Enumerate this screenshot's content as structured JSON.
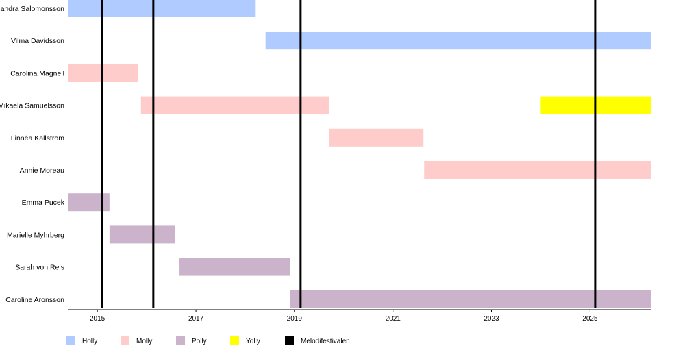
{
  "chart_data": {
    "type": "timeline",
    "x_axis": {
      "min": "2014-06-01",
      "max": "2026-04-01",
      "ticks": [
        "2015",
        "2017",
        "2019",
        "2021",
        "2023",
        "2025"
      ]
    },
    "groups": [
      {
        "name": "Holly",
        "color": "#b0cbff"
      },
      {
        "name": "Molly",
        "color": "#ffcccc"
      },
      {
        "name": "Polly",
        "color": "#ccb3cc"
      },
      {
        "name": "Yolly",
        "color": "#ffff00"
      }
    ],
    "members": [
      {
        "name": "Sandra Salomonsson",
        "periods": [
          {
            "group": "Holly",
            "start": "2014-06-01",
            "end": "2018-03-15"
          }
        ]
      },
      {
        "name": "Vilma Davidsson",
        "periods": [
          {
            "group": "Holly",
            "start": "2018-06-01",
            "end": "2026-04-01"
          }
        ]
      },
      {
        "name": "Carolina Magnell",
        "periods": [
          {
            "group": "Molly",
            "start": "2014-06-01",
            "end": "2015-11-01"
          }
        ]
      },
      {
        "name": "Mikaela Samuelsson",
        "periods": [
          {
            "group": "Molly",
            "start": "2015-11-20",
            "end": "2019-09-15"
          },
          {
            "group": "Yolly",
            "start": "2024-01-01",
            "end": "2026-04-01"
          }
        ]
      },
      {
        "name": "Linnéa Källström",
        "periods": [
          {
            "group": "Molly",
            "start": "2019-09-15",
            "end": "2021-08-15"
          }
        ]
      },
      {
        "name": "Annie Moreau",
        "periods": [
          {
            "group": "Molly",
            "start": "2021-08-20",
            "end": "2026-04-01"
          }
        ]
      },
      {
        "name": "Emma Pucek",
        "periods": [
          {
            "group": "Polly",
            "start": "2014-06-01",
            "end": "2015-04-01"
          }
        ]
      },
      {
        "name": "Marielle Myhrberg",
        "periods": [
          {
            "group": "Polly",
            "start": "2015-04-01",
            "end": "2016-08-01"
          }
        ]
      },
      {
        "name": "Sarah von Reis",
        "periods": [
          {
            "group": "Polly",
            "start": "2016-09-01",
            "end": "2018-12-01"
          }
        ]
      },
      {
        "name": "Caroline Aronsson",
        "periods": [
          {
            "group": "Polly",
            "start": "2018-12-01",
            "end": "2026-04-01"
          }
        ]
      }
    ],
    "events": {
      "name": "Melodifestivalen",
      "color": "#000000",
      "dates": [
        "2015-02-07",
        "2016-02-20",
        "2019-02-16",
        "2025-02-08"
      ]
    },
    "legend": {
      "position": "bottom-left"
    }
  }
}
